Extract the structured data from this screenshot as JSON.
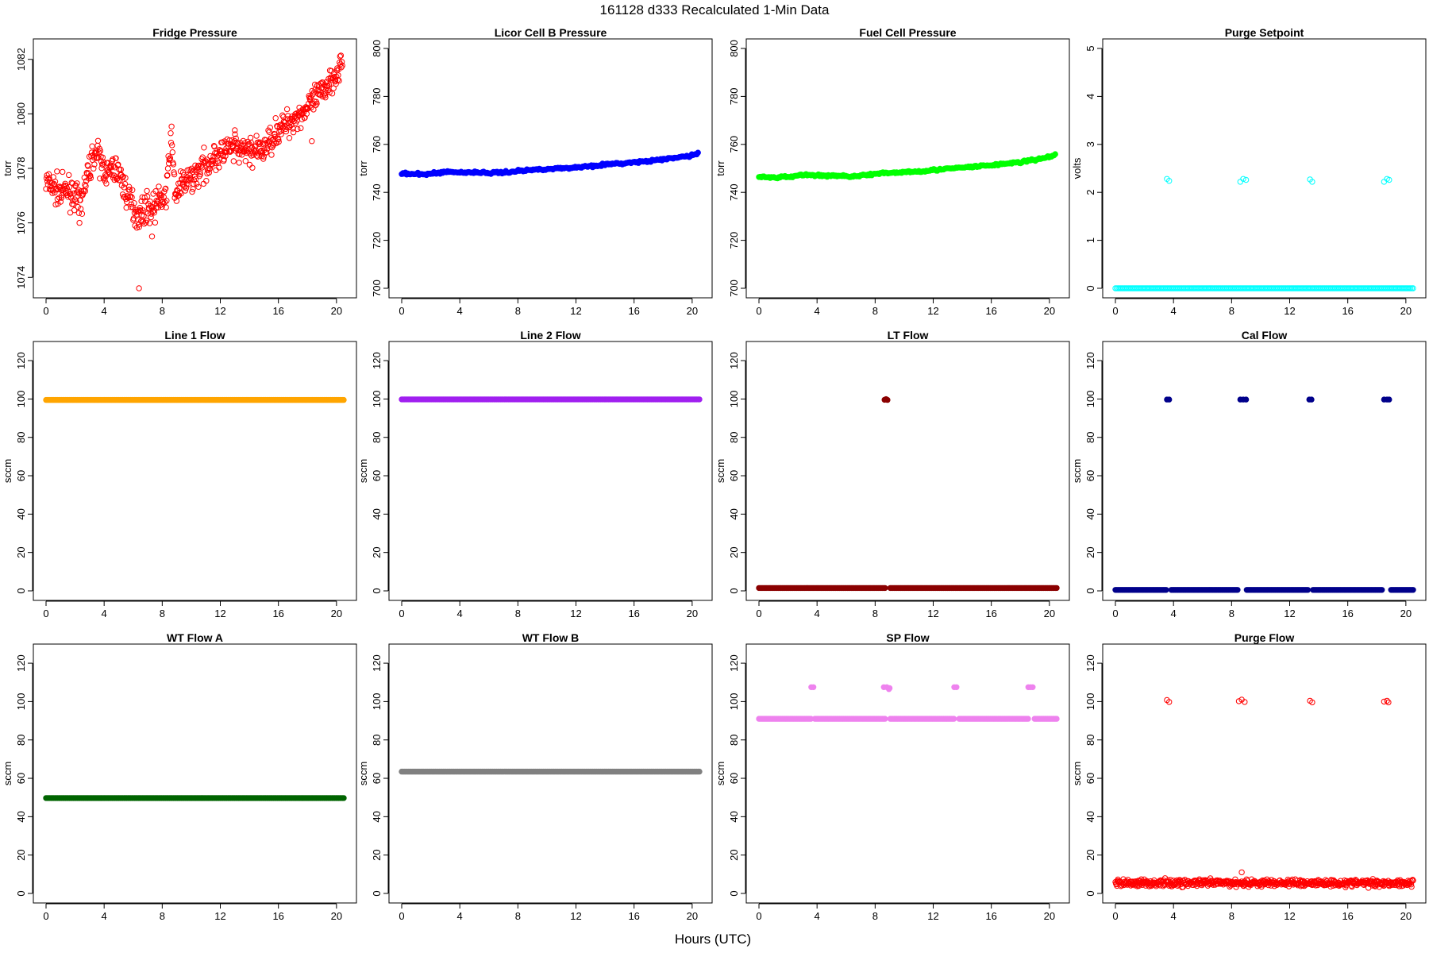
{
  "figure": {
    "title": "161128    d333    Recalculated 1-Min Data",
    "xlabel": "Hours (UTC)"
  },
  "chart_data": [
    {
      "type": "scatter",
      "title": "Fridge Pressure",
      "ylabel": "torr",
      "color": "#ff0000",
      "marker": "open-circle",
      "xlim": [
        0,
        20.5
      ],
      "xticks": [
        0,
        4,
        8,
        12,
        16,
        20
      ],
      "ylim": [
        1073.6,
        1082.4
      ],
      "yticks": [
        1074,
        1076,
        1078,
        1080,
        1082
      ],
      "series": [
        {
          "points": [
            [
              0,
              1077.5
            ],
            [
              0.5,
              1077.3
            ],
            [
              1,
              1077.1
            ],
            [
              1.5,
              1077.2
            ],
            [
              2,
              1077.0
            ],
            [
              2.3,
              1076.6
            ],
            [
              2.6,
              1077.2
            ],
            [
              3,
              1078.0
            ],
            [
              3.3,
              1078.6
            ],
            [
              3.6,
              1078.4
            ],
            [
              4,
              1078.0
            ],
            [
              4.3,
              1077.8
            ],
            [
              4.7,
              1078.0
            ],
            [
              5,
              1077.9
            ],
            [
              5.3,
              1077.4
            ],
            [
              5.6,
              1077.0
            ],
            [
              6,
              1076.6
            ],
            [
              6.3,
              1076.3
            ],
            [
              6.6,
              1076.4
            ],
            [
              7,
              1076.6
            ],
            [
              7.3,
              1076.5
            ],
            [
              7.6,
              1076.7
            ],
            [
              8,
              1076.9
            ],
            [
              8.3,
              1077.0
            ],
            [
              8.6,
              1079.3
            ],
            [
              8.9,
              1077.0
            ],
            [
              9.2,
              1077.3
            ],
            [
              9.6,
              1077.5
            ],
            [
              10,
              1077.6
            ],
            [
              10.5,
              1077.9
            ],
            [
              11,
              1078.1
            ],
            [
              11.5,
              1078.4
            ],
            [
              12,
              1078.5
            ],
            [
              12.5,
              1078.7
            ],
            [
              13,
              1078.7
            ],
            [
              13.5,
              1078.6
            ],
            [
              14,
              1078.7
            ],
            [
              14.5,
              1078.6
            ],
            [
              15,
              1078.7
            ],
            [
              15.5,
              1079.1
            ],
            [
              16,
              1079.4
            ],
            [
              16.5,
              1079.6
            ],
            [
              17,
              1079.8
            ],
            [
              17.5,
              1080.0
            ],
            [
              18,
              1080.2
            ],
            [
              18.5,
              1080.5
            ],
            [
              19,
              1080.8
            ],
            [
              19.5,
              1081.2
            ],
            [
              20,
              1081.5
            ],
            [
              20.4,
              1081.9
            ]
          ],
          "outliers": [
            [
              6.4,
              1073.6
            ],
            [
              2.3,
              1076.0
            ],
            [
              7.3,
              1075.5
            ],
            [
              13.0,
              1079.4
            ],
            [
              18.3,
              1079.0
            ]
          ]
        }
      ]
    },
    {
      "type": "scatter",
      "title": "Licor Cell B Pressure",
      "ylabel": "torr",
      "color": "#0000ff",
      "marker": "filled-circle",
      "xlim": [
        0,
        20.5
      ],
      "xticks": [
        0,
        4,
        8,
        12,
        16,
        20
      ],
      "ylim": [
        700,
        800
      ],
      "yticks": [
        700,
        720,
        740,
        760,
        780,
        800
      ],
      "series": [
        {
          "points": [
            [
              0,
              747.8
            ],
            [
              1,
              747.5
            ],
            [
              2,
              747.7
            ],
            [
              3,
              748.6
            ],
            [
              4,
              748.3
            ],
            [
              5,
              748.4
            ],
            [
              6,
              748.1
            ],
            [
              7,
              748.3
            ],
            [
              8,
              748.9
            ],
            [
              9,
              749.4
            ],
            [
              10,
              749.8
            ],
            [
              11,
              750.0
            ],
            [
              12,
              750.4
            ],
            [
              13,
              751.0
            ],
            [
              14,
              751.6
            ],
            [
              15,
              752.0
            ],
            [
              16,
              752.5
            ],
            [
              17,
              753.0
            ],
            [
              18,
              753.7
            ],
            [
              19,
              754.5
            ],
            [
              20,
              755.5
            ],
            [
              20.4,
              756.2
            ]
          ]
        }
      ]
    },
    {
      "type": "scatter",
      "title": "Fuel Cell Pressure",
      "ylabel": "torr",
      "color": "#00ff00",
      "marker": "filled-circle",
      "xlim": [
        0,
        20.5
      ],
      "xticks": [
        0,
        4,
        8,
        12,
        16,
        20
      ],
      "ylim": [
        700,
        800
      ],
      "yticks": [
        700,
        720,
        740,
        760,
        780,
        800
      ],
      "series": [
        {
          "points": [
            [
              0,
              746.5
            ],
            [
              1,
              746.2
            ],
            [
              2,
              746.4
            ],
            [
              3,
              747.4
            ],
            [
              4,
              747.0
            ],
            [
              5,
              747.0
            ],
            [
              6,
              746.7
            ],
            [
              7,
              747.0
            ],
            [
              8,
              747.6
            ],
            [
              9,
              748.1
            ],
            [
              10,
              748.5
            ],
            [
              11,
              748.8
            ],
            [
              12,
              749.3
            ],
            [
              13,
              749.8
            ],
            [
              14,
              750.3
            ],
            [
              15,
              750.8
            ],
            [
              16,
              751.3
            ],
            [
              17,
              752.0
            ],
            [
              18,
              752.6
            ],
            [
              19,
              753.5
            ],
            [
              20,
              754.8
            ],
            [
              20.4,
              755.8
            ]
          ]
        }
      ]
    },
    {
      "type": "scatter",
      "title": "Purge Setpoint",
      "ylabel": "volts",
      "color": "#00ffff",
      "marker": "open-circle",
      "xlim": [
        0,
        20.5
      ],
      "xticks": [
        0,
        4,
        8,
        12,
        16,
        20
      ],
      "ylim": [
        0,
        5
      ],
      "yticks": [
        0,
        1,
        2,
        3,
        4,
        5
      ],
      "series": [
        {
          "constant": 0,
          "from": 0,
          "to": 20.5,
          "outliers": [
            [
              3.55,
              2.28
            ],
            [
              3.7,
              2.24
            ],
            [
              8.6,
              2.22
            ],
            [
              8.8,
              2.28
            ],
            [
              9.0,
              2.26
            ],
            [
              13.4,
              2.27
            ],
            [
              13.55,
              2.22
            ],
            [
              18.5,
              2.22
            ],
            [
              18.7,
              2.28
            ],
            [
              18.85,
              2.26
            ]
          ]
        }
      ]
    },
    {
      "type": "scatter",
      "title": "Line 1 Flow",
      "ylabel": "sccm",
      "color": "#ffa500",
      "marker": "filled-circle",
      "xlim": [
        0,
        20.5
      ],
      "xticks": [
        0,
        4,
        8,
        12,
        16,
        20
      ],
      "ylim": [
        0,
        125
      ],
      "yticks": [
        0,
        20,
        40,
        60,
        80,
        100,
        120
      ],
      "series": [
        {
          "constant": 99.5,
          "from": 0,
          "to": 20.5
        }
      ]
    },
    {
      "type": "scatter",
      "title": "Line 2 Flow",
      "ylabel": "sccm",
      "color": "#a020f0",
      "marker": "filled-circle",
      "xlim": [
        0,
        20.5
      ],
      "xticks": [
        0,
        4,
        8,
        12,
        16,
        20
      ],
      "ylim": [
        0,
        125
      ],
      "yticks": [
        0,
        20,
        40,
        60,
        80,
        100,
        120
      ],
      "series": [
        {
          "constant": 99.8,
          "from": 0,
          "to": 20.5
        }
      ]
    },
    {
      "type": "scatter",
      "title": "LT Flow",
      "ylabel": "sccm",
      "color": "#8b0000",
      "marker": "filled-circle",
      "xlim": [
        0,
        20.5
      ],
      "xticks": [
        0,
        4,
        8,
        12,
        16,
        20
      ],
      "ylim": [
        0,
        125
      ],
      "yticks": [
        0,
        20,
        40,
        60,
        80,
        100,
        120
      ],
      "series": [
        {
          "constant": 1.5,
          "from": 0,
          "to": 20.5,
          "gaps": [
            [
              8.7,
              9.0
            ]
          ],
          "outliers": [
            [
              8.65,
              99.6
            ],
            [
              8.75,
              99.9
            ],
            [
              8.85,
              99.5
            ]
          ]
        }
      ]
    },
    {
      "type": "scatter",
      "title": "Cal Flow",
      "ylabel": "sccm",
      "color": "#00008b",
      "marker": "filled-circle",
      "xlim": [
        0,
        20.5
      ],
      "xticks": [
        0,
        4,
        8,
        12,
        16,
        20
      ],
      "ylim": [
        0,
        125
      ],
      "yticks": [
        0,
        20,
        40,
        60,
        80,
        100,
        120
      ],
      "series": [
        {
          "constant": 0.5,
          "from": 0,
          "to": 20.5,
          "gaps": [
            [
              3.5,
              3.8
            ],
            [
              8.5,
              9.0
            ],
            [
              13.3,
              13.6
            ],
            [
              18.4,
              18.9
            ]
          ],
          "outliers": [
            [
              3.55,
              99.7
            ],
            [
              3.7,
              99.7
            ],
            [
              8.6,
              99.7
            ],
            [
              8.8,
              99.7
            ],
            [
              9.0,
              99.7
            ],
            [
              13.35,
              99.7
            ],
            [
              13.5,
              99.7
            ],
            [
              18.5,
              99.7
            ],
            [
              18.7,
              99.7
            ],
            [
              18.85,
              99.7
            ]
          ]
        }
      ]
    },
    {
      "type": "scatter",
      "title": "WT Flow A",
      "ylabel": "sccm",
      "color": "#006400",
      "marker": "filled-circle",
      "xlim": [
        0,
        20.5
      ],
      "xticks": [
        0,
        4,
        8,
        12,
        16,
        20
      ],
      "ylim": [
        0,
        125
      ],
      "yticks": [
        0,
        20,
        40,
        60,
        80,
        100,
        120
      ],
      "series": [
        {
          "constant": 49.7,
          "from": 0,
          "to": 20.5
        }
      ]
    },
    {
      "type": "scatter",
      "title": "WT Flow B",
      "ylabel": "sccm",
      "color": "#808080",
      "marker": "filled-circle",
      "xlim": [
        0,
        20.5
      ],
      "xticks": [
        0,
        4,
        8,
        12,
        16,
        20
      ],
      "ylim": [
        0,
        125
      ],
      "yticks": [
        0,
        20,
        40,
        60,
        80,
        100,
        120
      ],
      "series": [
        {
          "constant": 63.5,
          "from": 0,
          "to": 20.5
        }
      ]
    },
    {
      "type": "scatter",
      "title": "SP Flow",
      "ylabel": "sccm",
      "color": "#ee82ee",
      "marker": "filled-circle",
      "xlim": [
        0,
        20.5
      ],
      "xticks": [
        0,
        4,
        8,
        12,
        16,
        20
      ],
      "ylim": [
        0,
        125
      ],
      "yticks": [
        0,
        20,
        40,
        60,
        80,
        100,
        120
      ],
      "series": [
        {
          "constant": 91,
          "from": 0,
          "to": 20.5,
          "gaps": [
            [
              3.6,
              3.8
            ],
            [
              8.7,
              9.0
            ],
            [
              13.5,
              13.7
            ],
            [
              18.6,
              18.9
            ]
          ],
          "outliers": [
            [
              3.6,
              107.5
            ],
            [
              3.75,
              107.5
            ],
            [
              8.6,
              107.5
            ],
            [
              8.8,
              107.5
            ],
            [
              9.0,
              107.0
            ],
            [
              8.95,
              106.5
            ],
            [
              13.45,
              107.5
            ],
            [
              13.6,
              107.5
            ],
            [
              18.55,
              107.5
            ],
            [
              18.7,
              107.5
            ],
            [
              18.85,
              107.5
            ]
          ]
        }
      ]
    },
    {
      "type": "scatter",
      "title": "Purge Flow",
      "ylabel": "sccm",
      "color": "#ff0000",
      "marker": "open-circle",
      "xlim": [
        0,
        20.5
      ],
      "xticks": [
        0,
        4,
        8,
        12,
        16,
        20
      ],
      "ylim": [
        0,
        125
      ],
      "yticks": [
        0,
        20,
        40,
        60,
        80,
        100,
        120
      ],
      "series": [
        {
          "noisy_constant": 5.5,
          "from": 0,
          "to": 20.5,
          "outliers": [
            [
              3.55,
              100.8
            ],
            [
              3.7,
              99.8
            ],
            [
              8.5,
              100.2
            ],
            [
              8.7,
              101.0
            ],
            [
              8.9,
              99.8
            ],
            [
              13.4,
              100.4
            ],
            [
              13.55,
              99.6
            ],
            [
              18.5,
              100.0
            ],
            [
              18.7,
              100.4
            ],
            [
              18.8,
              99.6
            ],
            [
              8.7,
              11.0
            ]
          ]
        }
      ]
    }
  ]
}
